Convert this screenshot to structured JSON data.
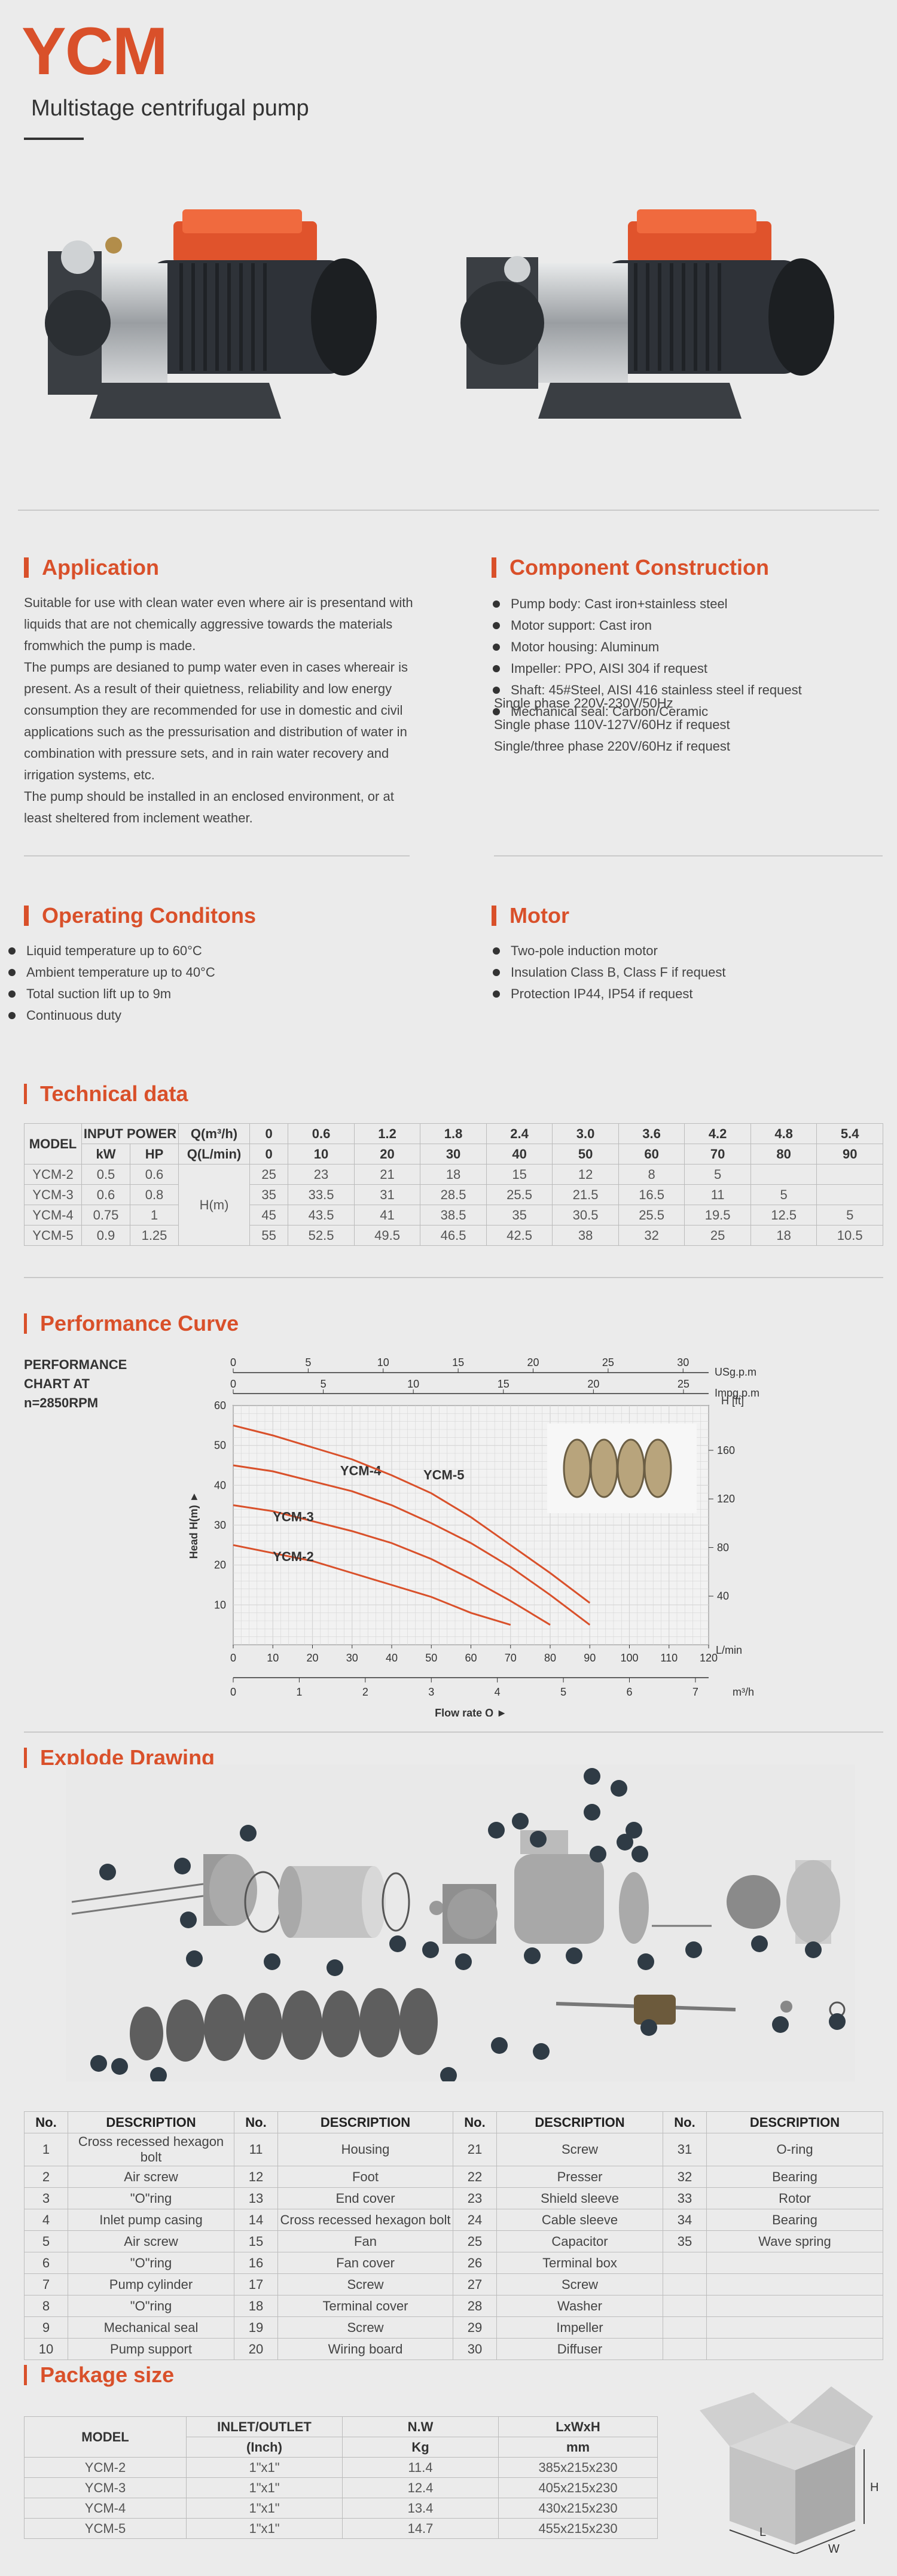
{
  "header": {
    "title": "YCM",
    "subtitle": "Multistage centrifugal pump"
  },
  "application": {
    "heading": "Application",
    "text": "Suitable for use with clean water even where air is presentand with liquids that are not chemically aggressive towards the materials fromwhich the pump is made.\nThe pumps are desianed to pump water even in cases whereair is present. As a result of their quietness, reliability and low energy consumption they are recommended for use in domestic and civil applications such as the pressurisation and distribution of water in combination with pressure sets, and in rain water recovery and irrigation systems, etc.\nThe pump should be installed in an enclosed environment, or at least sheltered from inclement weather."
  },
  "component": {
    "heading": "Component Construction",
    "items": [
      "Pump body: Cast iron+stainless steel",
      "Motor support: Cast iron",
      "Motor housing: Aluminum",
      "Impeller: PPO, AISI 304 if request",
      "Shaft: 45#Steel, AISI 416 stainless steel if request",
      "Mechanical seal: Carbon/Ceramic"
    ],
    "power": [
      "Single phase 220V-230V/50Hz",
      "Single phase 110V-127V/60Hz if request",
      "Single/three phase 220V/60Hz if request"
    ]
  },
  "operating": {
    "heading": "Operating Conditons",
    "items": [
      "Liquid temperature up to 60°C",
      "Ambient temperature up to 40°C",
      "Total suction lift up to 9m",
      "Continuous duty"
    ]
  },
  "motor": {
    "heading": "Motor",
    "items": [
      "Two-pole induction motor",
      "Insulation Class B, Class F if request",
      "Protection IP44, IP54 if request"
    ]
  },
  "technical": {
    "heading": "Technical data",
    "col_model": "MODEL",
    "col_input": "INPUT POWER",
    "col_kw": "kW",
    "col_hp": "HP",
    "col_q1": "Q(m³/h)",
    "col_q2": "Q(L/min)",
    "hm": "H(m)",
    "q_m3h": [
      "0",
      "0.6",
      "1.2",
      "1.8",
      "2.4",
      "3.0",
      "3.6",
      "4.2",
      "4.8",
      "5.4"
    ],
    "q_lmin": [
      "0",
      "10",
      "20",
      "30",
      "40",
      "50",
      "60",
      "70",
      "80",
      "90"
    ],
    "rows": [
      {
        "model": "YCM-2",
        "kw": "0.5",
        "hp": "0.6",
        "h": [
          "25",
          "23",
          "21",
          "18",
          "15",
          "12",
          "8",
          "5",
          "",
          ""
        ]
      },
      {
        "model": "YCM-3",
        "kw": "0.6",
        "hp": "0.8",
        "h": [
          "35",
          "33.5",
          "31",
          "28.5",
          "25.5",
          "21.5",
          "16.5",
          "11",
          "5",
          ""
        ]
      },
      {
        "model": "YCM-4",
        "kw": "0.75",
        "hp": "1",
        "h": [
          "45",
          "43.5",
          "41",
          "38.5",
          "35",
          "30.5",
          "25.5",
          "19.5",
          "12.5",
          "5"
        ]
      },
      {
        "model": "YCM-5",
        "kw": "0.9",
        "hp": "1.25",
        "h": [
          "55",
          "52.5",
          "49.5",
          "46.5",
          "42.5",
          "38",
          "32",
          "25",
          "18",
          "10.5"
        ]
      }
    ]
  },
  "performance": {
    "heading": "Performance Curve",
    "chart_label_1": "PERFORMANCE",
    "chart_label_2": "CHART AT",
    "chart_label_3": "n=2850RPM"
  },
  "chart_data": {
    "type": "line",
    "xlabel": "Flow rate Q ►",
    "ylabel": "Head H(m) ►",
    "x_unit_bottom": "L/min",
    "x_unit_m3h": "m³/h",
    "x_unit_usg": "USg.p.m",
    "x_unit_imp": "Impg.p.m",
    "y_unit_ft": "H [ft]",
    "xlim": [
      0,
      120
    ],
    "ylim": [
      0,
      60
    ],
    "x_ticks": [
      "0",
      "10",
      "20",
      "30",
      "40",
      "50",
      "60",
      "70",
      "80",
      "90",
      "100",
      "110",
      "120"
    ],
    "y_ticks": [
      "10",
      "20",
      "30",
      "40",
      "50",
      "60"
    ],
    "m3h_ticks": [
      "0",
      "1",
      "2",
      "3",
      "4",
      "5",
      "6",
      "7"
    ],
    "usg_ticks": [
      "0",
      "5",
      "10",
      "15",
      "20",
      "25",
      "30"
    ],
    "imp_ticks": [
      "0",
      "5",
      "10",
      "15",
      "20",
      "25"
    ],
    "ft_ticks": [
      "40",
      "80",
      "120",
      "160"
    ],
    "series": [
      {
        "name": "YCM-2",
        "x": [
          0,
          10,
          20,
          30,
          40,
          50,
          60,
          70
        ],
        "y": [
          25,
          23,
          21,
          18,
          15,
          12,
          8,
          5
        ]
      },
      {
        "name": "YCM-3",
        "x": [
          0,
          10,
          20,
          30,
          40,
          50,
          60,
          70,
          80
        ],
        "y": [
          35,
          33.5,
          31,
          28.5,
          25.5,
          21.5,
          16.5,
          11,
          5
        ]
      },
      {
        "name": "YCM-4",
        "x": [
          0,
          10,
          20,
          30,
          40,
          50,
          60,
          70,
          80,
          90
        ],
        "y": [
          45,
          43.5,
          41,
          38.5,
          35,
          30.5,
          25.5,
          19.5,
          12.5,
          5
        ]
      },
      {
        "name": "YCM-5",
        "x": [
          0,
          10,
          20,
          30,
          40,
          50,
          60,
          70,
          80,
          90
        ],
        "y": [
          55,
          52.5,
          49.5,
          46.5,
          42.5,
          38,
          32,
          25,
          18,
          10.5
        ]
      }
    ],
    "line_color": "#d9502a",
    "grid": true
  },
  "explode": {
    "heading": "Explode Drawing"
  },
  "parts": {
    "headers": [
      "No.",
      "DESCRIPTION",
      "No.",
      "DESCRIPTION",
      "No.",
      "DESCRIPTION",
      "No.",
      "DESCRIPTION"
    ],
    "rows": [
      [
        "1",
        "Cross recessed hexagon bolt",
        "11",
        "Housing",
        "21",
        "Screw",
        "31",
        "O-ring"
      ],
      [
        "2",
        "Air screw",
        "12",
        "Foot",
        "22",
        "Presser",
        "32",
        "Bearing"
      ],
      [
        "3",
        "\"O\"ring",
        "13",
        "End cover",
        "23",
        "Shield sleeve",
        "33",
        "Rotor"
      ],
      [
        "4",
        "Inlet pump casing",
        "14",
        "Cross recessed hexagon bolt",
        "24",
        "Cable sleeve",
        "34",
        "Bearing"
      ],
      [
        "5",
        "Air screw",
        "15",
        "Fan",
        "25",
        "Capacitor",
        "35",
        "Wave spring"
      ],
      [
        "6",
        "\"O\"ring",
        "16",
        "Fan cover",
        "26",
        "Terminal box",
        "",
        ""
      ],
      [
        "7",
        "Pump cylinder",
        "17",
        "Screw",
        "27",
        "Screw",
        "",
        ""
      ],
      [
        "8",
        "\"O\"ring",
        "18",
        "Terminal cover",
        "28",
        "Washer",
        "",
        ""
      ],
      [
        "9",
        "Mechanical seal",
        "19",
        "Screw",
        "29",
        "Impeller",
        "",
        ""
      ],
      [
        "10",
        "Pump support",
        "20",
        "Wiring board",
        "30",
        "Diffuser",
        "",
        ""
      ]
    ]
  },
  "package": {
    "heading": "Package size",
    "col_model": "MODEL",
    "col_inlet": "INLET/OUTLET",
    "col_inlet_unit": "(Inch)",
    "col_nw": "N.W",
    "col_nw_unit": "Kg",
    "col_dim": "LxWxH",
    "col_dim_unit": "mm",
    "rows": [
      {
        "model": "YCM-2",
        "inlet": "1\"x1\"",
        "nw": "11.4",
        "dim": "385x215x230"
      },
      {
        "model": "YCM-3",
        "inlet": "1\"x1\"",
        "nw": "12.4",
        "dim": "405x215x230"
      },
      {
        "model": "YCM-4",
        "inlet": "1\"x1\"",
        "nw": "13.4",
        "dim": "430x215x230"
      },
      {
        "model": "YCM-5",
        "inlet": "1\"x1\"",
        "nw": "14.7",
        "dim": "455x215x230"
      }
    ],
    "box_h": "H",
    "box_l": "L",
    "box_w": "W"
  }
}
